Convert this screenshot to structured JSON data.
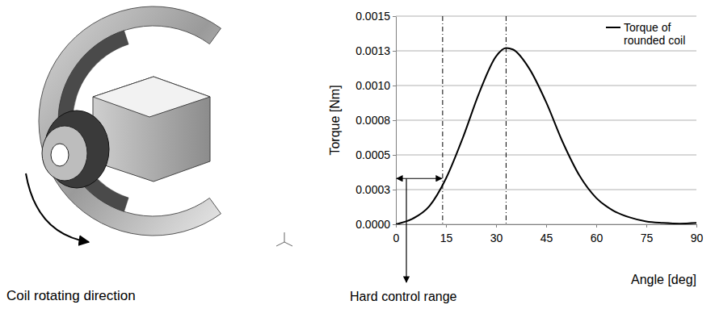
{
  "chart_data": {
    "type": "line",
    "x_label": "Angle [deg]",
    "y_label": "Torque [Nm]",
    "x": [
      0,
      5,
      10,
      15,
      20,
      25,
      30,
      33,
      35,
      40,
      45,
      50,
      55,
      60,
      65,
      70,
      75,
      80,
      85,
      90
    ],
    "series": [
      {
        "name": "Torque of rounded coil",
        "color": "#000000",
        "values": [
          0,
          4e-05,
          0.00013,
          0.00033,
          0.00062,
          0.00095,
          0.00121,
          0.00127,
          0.00126,
          0.00112,
          0.00088,
          0.00059,
          0.00035,
          0.00019,
          0.0001,
          5e-05,
          2e-05,
          1e-05,
          5e-06,
          1e-05
        ]
      }
    ],
    "xlim": [
      0,
      90
    ],
    "xticks": [
      0,
      15,
      30,
      45,
      60,
      75,
      90
    ],
    "ylim": [
      0,
      0.0015
    ],
    "yticks": [
      {
        "value": 0,
        "label": "0.0000"
      },
      {
        "value": 0.00025,
        "label": "0.0003"
      },
      0.0005,
      {
        "value": 0.00075,
        "label": "0.0008"
      },
      {
        "value": 0.001,
        "label": "0.0010"
      },
      {
        "value": 0.00125,
        "label": "0.0013"
      },
      0.0015
    ],
    "grid": true,
    "legend": "upper right",
    "vlines": [
      14,
      33
    ],
    "annotations": [
      {
        "text": "Hard control range",
        "x": [
          0,
          14
        ],
        "y": 0.00033
      }
    ]
  },
  "image": {
    "caption": "Coil rotating direction"
  }
}
